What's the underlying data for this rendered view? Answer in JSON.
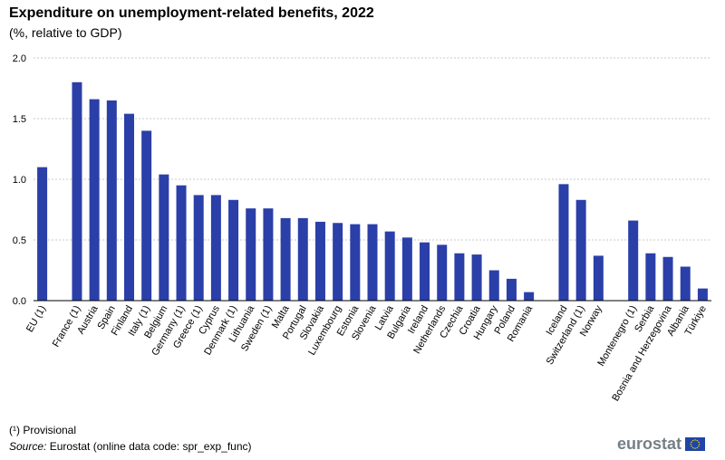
{
  "title": "Expenditure on unemployment-related benefits, 2022",
  "subtitle": "(%, relative to GDP)",
  "footnote": "(¹) Provisional",
  "source_label": "Source:",
  "source_text": " Eurostat (online data code: spr_exp_func)",
  "logo_text": "eurostat",
  "colors": {
    "bar": "#2b3fa8",
    "grid": "#c8c8c8",
    "axis": "#000000",
    "flag": "#1f45a8",
    "star": "#f5d400"
  },
  "chart_data": {
    "type": "bar",
    "title": "Expenditure on unemployment-related benefits, 2022",
    "subtitle": "(%, relative to GDP)",
    "xlabel": "",
    "ylabel": "",
    "ylim": [
      0,
      2.0
    ],
    "yticks": [
      "0.0",
      "0.5",
      "1.0",
      "1.5",
      "2.0"
    ],
    "categories": [
      "EU (1)",
      "",
      "France (1)",
      "Austria",
      "Spain",
      "Finland",
      "Italy (1)",
      "Belgium",
      "Germany (1)",
      "Greece (1)",
      "Cyprus",
      "Denmark (1)",
      "Lithuania",
      "Sweden (1)",
      "Malta",
      "Portugal",
      "Slovakia",
      "Luxembourg",
      "Estonia",
      "Slovenia",
      "Latvia",
      "Bulgaria",
      "Ireland",
      "Netherlands",
      "Czechia",
      "Croatia",
      "Hungary",
      "Poland",
      "Romania",
      "",
      "Iceland",
      "Switzerland (1)",
      "Norway",
      "",
      "Montenegro (1)",
      "Serbia",
      "Bosnia and Herzegovina",
      "Albania",
      "Türkiye"
    ],
    "values": [
      1.1,
      null,
      1.8,
      1.66,
      1.65,
      1.54,
      1.4,
      1.04,
      0.95,
      0.87,
      0.87,
      0.83,
      0.76,
      0.76,
      0.68,
      0.68,
      0.65,
      0.64,
      0.63,
      0.63,
      0.57,
      0.52,
      0.48,
      0.46,
      0.39,
      0.38,
      0.25,
      0.18,
      0.07,
      null,
      0.96,
      0.83,
      0.37,
      null,
      0.66,
      0.39,
      0.36,
      0.28,
      0.1
    ],
    "grid": true,
    "legend": "none"
  }
}
